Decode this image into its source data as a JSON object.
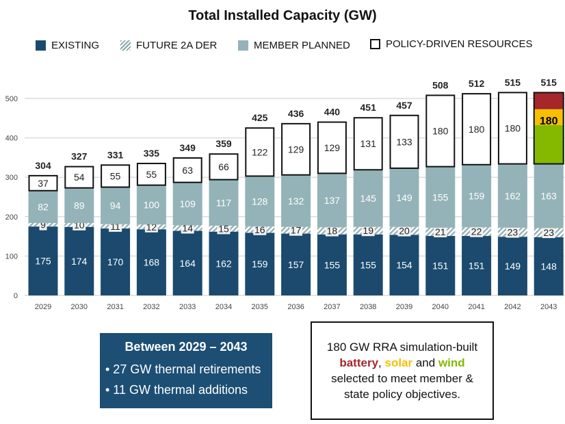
{
  "chart_data": {
    "type": "bar",
    "stacked": true,
    "title": "Total Installed Capacity (GW)",
    "xlabel": "",
    "ylabel": "",
    "ylim": [
      0,
      500
    ],
    "yticks": [
      0,
      100,
      200,
      300,
      400,
      500
    ],
    "grid": true,
    "legend_position": "top",
    "categories": [
      "2029",
      "2030",
      "2031",
      "2032",
      "2033",
      "2034",
      "2035",
      "2036",
      "2037",
      "2038",
      "2039",
      "2040",
      "2041",
      "2042",
      "2043"
    ],
    "series": [
      {
        "name": "EXISTING",
        "color": "#1b4a6e",
        "values": [
          175,
          174,
          170,
          168,
          164,
          162,
          159,
          157,
          155,
          155,
          154,
          151,
          151,
          149,
          148
        ]
      },
      {
        "name": "FUTURE 2A DER",
        "color": "hatched",
        "values": [
          9,
          10,
          11,
          12,
          14,
          15,
          16,
          17,
          18,
          19,
          20,
          21,
          22,
          23,
          23
        ]
      },
      {
        "name": "MEMBER PLANNED",
        "color": "#94b3b8",
        "values": [
          82,
          89,
          94,
          100,
          109,
          117,
          128,
          132,
          137,
          145,
          149,
          155,
          159,
          162,
          163
        ]
      },
      {
        "name": "POLICY-DRIVEN RESOURCES",
        "color": "#ffffff",
        "values": [
          37,
          54,
          55,
          55,
          63,
          66,
          122,
          129,
          129,
          131,
          133,
          180,
          180,
          180,
          180
        ]
      }
    ],
    "totals": [
      304,
      327,
      331,
      335,
      349,
      359,
      425,
      436,
      440,
      451,
      457,
      508,
      512,
      515,
      515
    ],
    "last_bar_policy_breakdown": [
      {
        "name": "battery",
        "color": "#a6262b",
        "value": 42
      },
      {
        "name": "solar",
        "color": "#f6bf00",
        "value": 40
      },
      {
        "name": "wind",
        "color": "#84b900",
        "value": 98
      }
    ]
  },
  "legend": [
    "EXISTING",
    "FUTURE 2A DER",
    "MEMBER PLANNED",
    "POLICY-DRIVEN RESOURCES"
  ],
  "summary_box": {
    "heading": "Between 2029 – 2043",
    "bullets": [
      "• 27 GW thermal retirements",
      "• 11 GW thermal additions"
    ]
  },
  "note_box": {
    "line1": "180 GW RRA simulation-built",
    "battery": "battery",
    "sep1": ", ",
    "solar": "solar",
    "and": " and ",
    "wind": "wind",
    "line3": "selected to meet member &",
    "line4": "state policy objectives."
  }
}
